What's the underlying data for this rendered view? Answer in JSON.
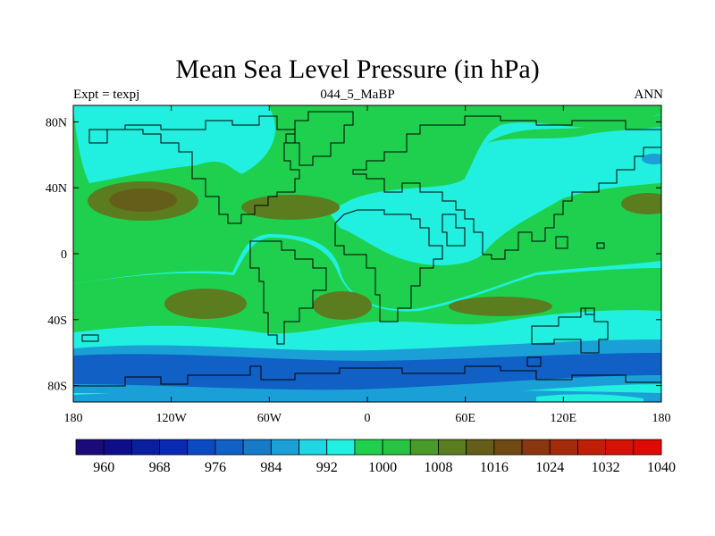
{
  "title": "Mean Sea Level Pressure (in hPa)",
  "subtitle_left": "Expt = texpj",
  "subtitle_center": "044_5_MaBP",
  "subtitle_right": "ANN",
  "map": {
    "lat_ticks": [
      {
        "lat": 80,
        "label": "80N"
      },
      {
        "lat": 40,
        "label": "40N"
      },
      {
        "lat": 0,
        "label": "0"
      },
      {
        "lat": -40,
        "label": "40S"
      },
      {
        "lat": -80,
        "label": "80S"
      }
    ],
    "lon_ticks": [
      {
        "lon": -180,
        "label": "180"
      },
      {
        "lon": -120,
        "label": "120W"
      },
      {
        "lon": -60,
        "label": "60W"
      },
      {
        "lon": 0,
        "label": "0"
      },
      {
        "lon": 60,
        "label": "60E"
      },
      {
        "lon": 120,
        "label": "120E"
      },
      {
        "lon": 180,
        "label": "180"
      }
    ],
    "lon_range": [
      -180,
      180
    ],
    "lat_range": [
      -90,
      90
    ]
  },
  "colorbar": {
    "colors": [
      "#1a0a7a",
      "#0e0e8c",
      "#0a1ea0",
      "#0a2ab4",
      "#0c4ac4",
      "#1060c6",
      "#167ac6",
      "#1aa0d6",
      "#1fd6e2",
      "#20f0e0",
      "#1fd04e",
      "#26c442",
      "#4a9a2a",
      "#5c7c20",
      "#645e1a",
      "#6e4a14",
      "#8a3610",
      "#a42a0c",
      "#c01e08",
      "#d41206",
      "#e00a04"
    ],
    "tick_labels": [
      "960",
      "968",
      "976",
      "984",
      "992",
      "1000",
      "1008",
      "1016",
      "1024",
      "1032",
      "1040"
    ]
  },
  "colors": {
    "ocean_low": "#21f0e0",
    "mid": "#1fd04e",
    "high": "#5c7c20",
    "deep_low1": "#1aa0d6",
    "deep_low2": "#1060c6",
    "coast": "#000000"
  }
}
